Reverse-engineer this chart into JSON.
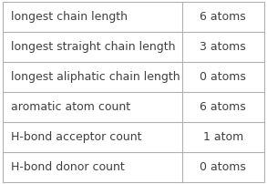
{
  "rows": [
    {
      "label": "longest chain length",
      "value": "6 atoms"
    },
    {
      "label": "longest straight chain length",
      "value": "3 atoms"
    },
    {
      "label": "longest aliphatic chain length",
      "value": "0 atoms"
    },
    {
      "label": "aromatic atom count",
      "value": "6 atoms"
    },
    {
      "label": "H-bond acceptor count",
      "value": "1 atom"
    },
    {
      "label": "H-bond donor count",
      "value": "0 atoms"
    }
  ],
  "col_split": 0.685,
  "background_color": "#ffffff",
  "border_color": "#b0b0b0",
  "text_color": "#404040",
  "label_font_size": 9.0,
  "value_font_size": 9.0
}
